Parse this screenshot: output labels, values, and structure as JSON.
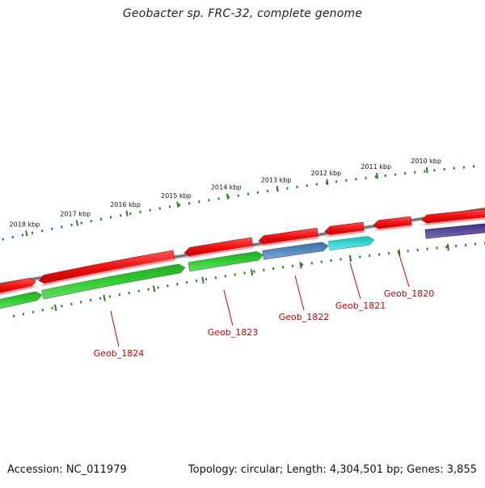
{
  "title": "Geobacter sp. FRC-32, complete genome",
  "footer": {
    "accession": "Accession: NC_011979",
    "stats": "Topology: circular; Length: 4,304,501 bp; Genes: 3,855"
  },
  "scale_ticks": [
    "2018 kbp",
    "2017 kbp",
    "2016 kbp",
    "2015 kbp",
    "2014 kbp",
    "2013 kbp",
    "2012 kbp",
    "2011 kbp",
    "2010 kbp"
  ],
  "genes": [
    {
      "label": "Geob_1824"
    },
    {
      "label": "Geob_1823"
    },
    {
      "label": "Geob_1822"
    },
    {
      "label": "Geob_1821"
    },
    {
      "label": "Geob_1820"
    }
  ],
  "colors": {
    "forward_red": "#ee1111",
    "green": "#33cc33",
    "steel_blue": "#4a7fb5",
    "cyan": "#22cccc",
    "indigo": "#4a3c8c",
    "backbone": "#888888",
    "tick_green": "#2a7a2a",
    "label_red": "#cc0000"
  }
}
